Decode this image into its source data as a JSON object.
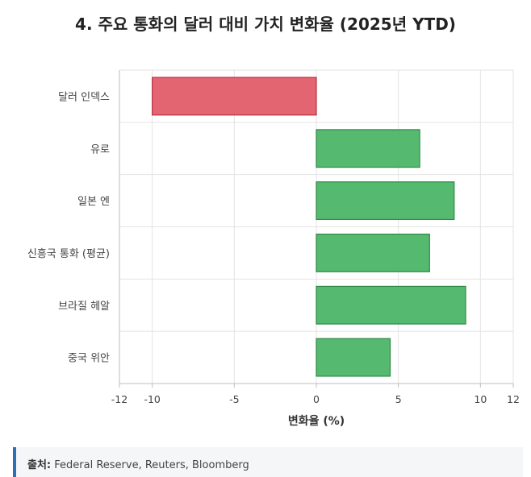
{
  "title": "4. 주요 통화의 달러 대비 가치 변화율 (2025년 YTD)",
  "chart_data": {
    "type": "bar",
    "orientation": "horizontal",
    "categories": [
      "달러 인덱스",
      "유로",
      "일본 엔",
      "신흥국 통화 (평균)",
      "브라질 헤알",
      "중국 위안"
    ],
    "values": [
      -10,
      6.3,
      8.4,
      6.9,
      9.1,
      4.5
    ],
    "xlabel": "변화율 (%)",
    "xlim": [
      -12,
      12
    ],
    "xticks": [
      -12,
      -10,
      -5,
      0,
      5,
      10,
      12
    ],
    "grid": true,
    "legend": "none",
    "colors": {
      "negative_fill": "#e35d6a",
      "negative_stroke": "#b8303e",
      "positive_fill": "#4cb567",
      "positive_stroke": "#2e8a45"
    }
  },
  "source": {
    "label": "출처:",
    "text": "Federal Reserve, Reuters, Bloomberg"
  }
}
